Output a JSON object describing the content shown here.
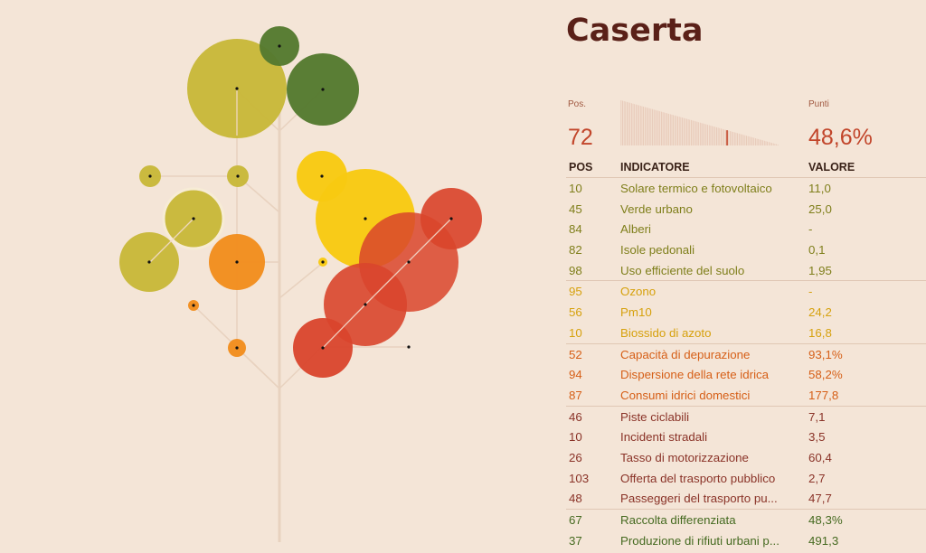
{
  "city": "Caserta",
  "summary": {
    "pos_label": "Pos.",
    "pos_value": "72",
    "points_label": "Punti",
    "points_value": "48,6%",
    "rank_position": 72,
    "rank_total": 106
  },
  "table": {
    "headers": {
      "pos": "POS",
      "indicator": "INDICATORE",
      "value": "VALORE"
    },
    "rows": [
      {
        "pos": "10",
        "name": "Solare termico e fotovoltaico",
        "value": "11,0",
        "group": "env"
      },
      {
        "pos": "45",
        "name": "Verde urbano",
        "value": "25,0",
        "group": "env"
      },
      {
        "pos": "84",
        "name": "Alberi",
        "value": "-",
        "group": "env"
      },
      {
        "pos": "82",
        "name": "Isole pedonali",
        "value": "0,1",
        "group": "env"
      },
      {
        "pos": "98",
        "name": "Uso efficiente del suolo",
        "value": "1,95",
        "group": "env"
      },
      {
        "pos": "95",
        "name": "Ozono",
        "value": "-",
        "group": "air"
      },
      {
        "pos": "56",
        "name": "Pm10",
        "value": "24,2",
        "group": "air"
      },
      {
        "pos": "10",
        "name": "Biossido di azoto",
        "value": "16,8",
        "group": "air"
      },
      {
        "pos": "52",
        "name": "Capacità di depurazione",
        "value": "93,1%",
        "group": "water"
      },
      {
        "pos": "94",
        "name": "Dispersione della rete idrica",
        "value": "58,2%",
        "group": "water"
      },
      {
        "pos": "87",
        "name": "Consumi idrici domestici",
        "value": "177,8",
        "group": "water"
      },
      {
        "pos": "46",
        "name": "Piste ciclabili",
        "value": "7,1",
        "group": "mob"
      },
      {
        "pos": "10",
        "name": "Incidenti stradali",
        "value": "3,5",
        "group": "mob"
      },
      {
        "pos": "26",
        "name": "Tasso di motorizzazione",
        "value": "60,4",
        "group": "mob"
      },
      {
        "pos": "103",
        "name": "Offerta del trasporto pubblico",
        "value": "2,7",
        "group": "mob"
      },
      {
        "pos": "48",
        "name": "Passeggeri del trasporto pu...",
        "value": "47,7",
        "group": "mob"
      },
      {
        "pos": "67",
        "name": "Raccolta differenziata",
        "value": "48,3%",
        "group": "waste"
      },
      {
        "pos": "37",
        "name": "Produzione di rifiuti urbani p...",
        "value": "491,3",
        "group": "waste"
      }
    ]
  },
  "colors": {
    "background": "#f4e5d7",
    "title": "#5a2018",
    "accent": "#c2462b",
    "env_olive": "#c8b83a",
    "env_green": "#557a2f",
    "air_yellow": "#f8c912",
    "water_orange": "#f28d1e",
    "mobility_red": "#d9452c"
  }
}
